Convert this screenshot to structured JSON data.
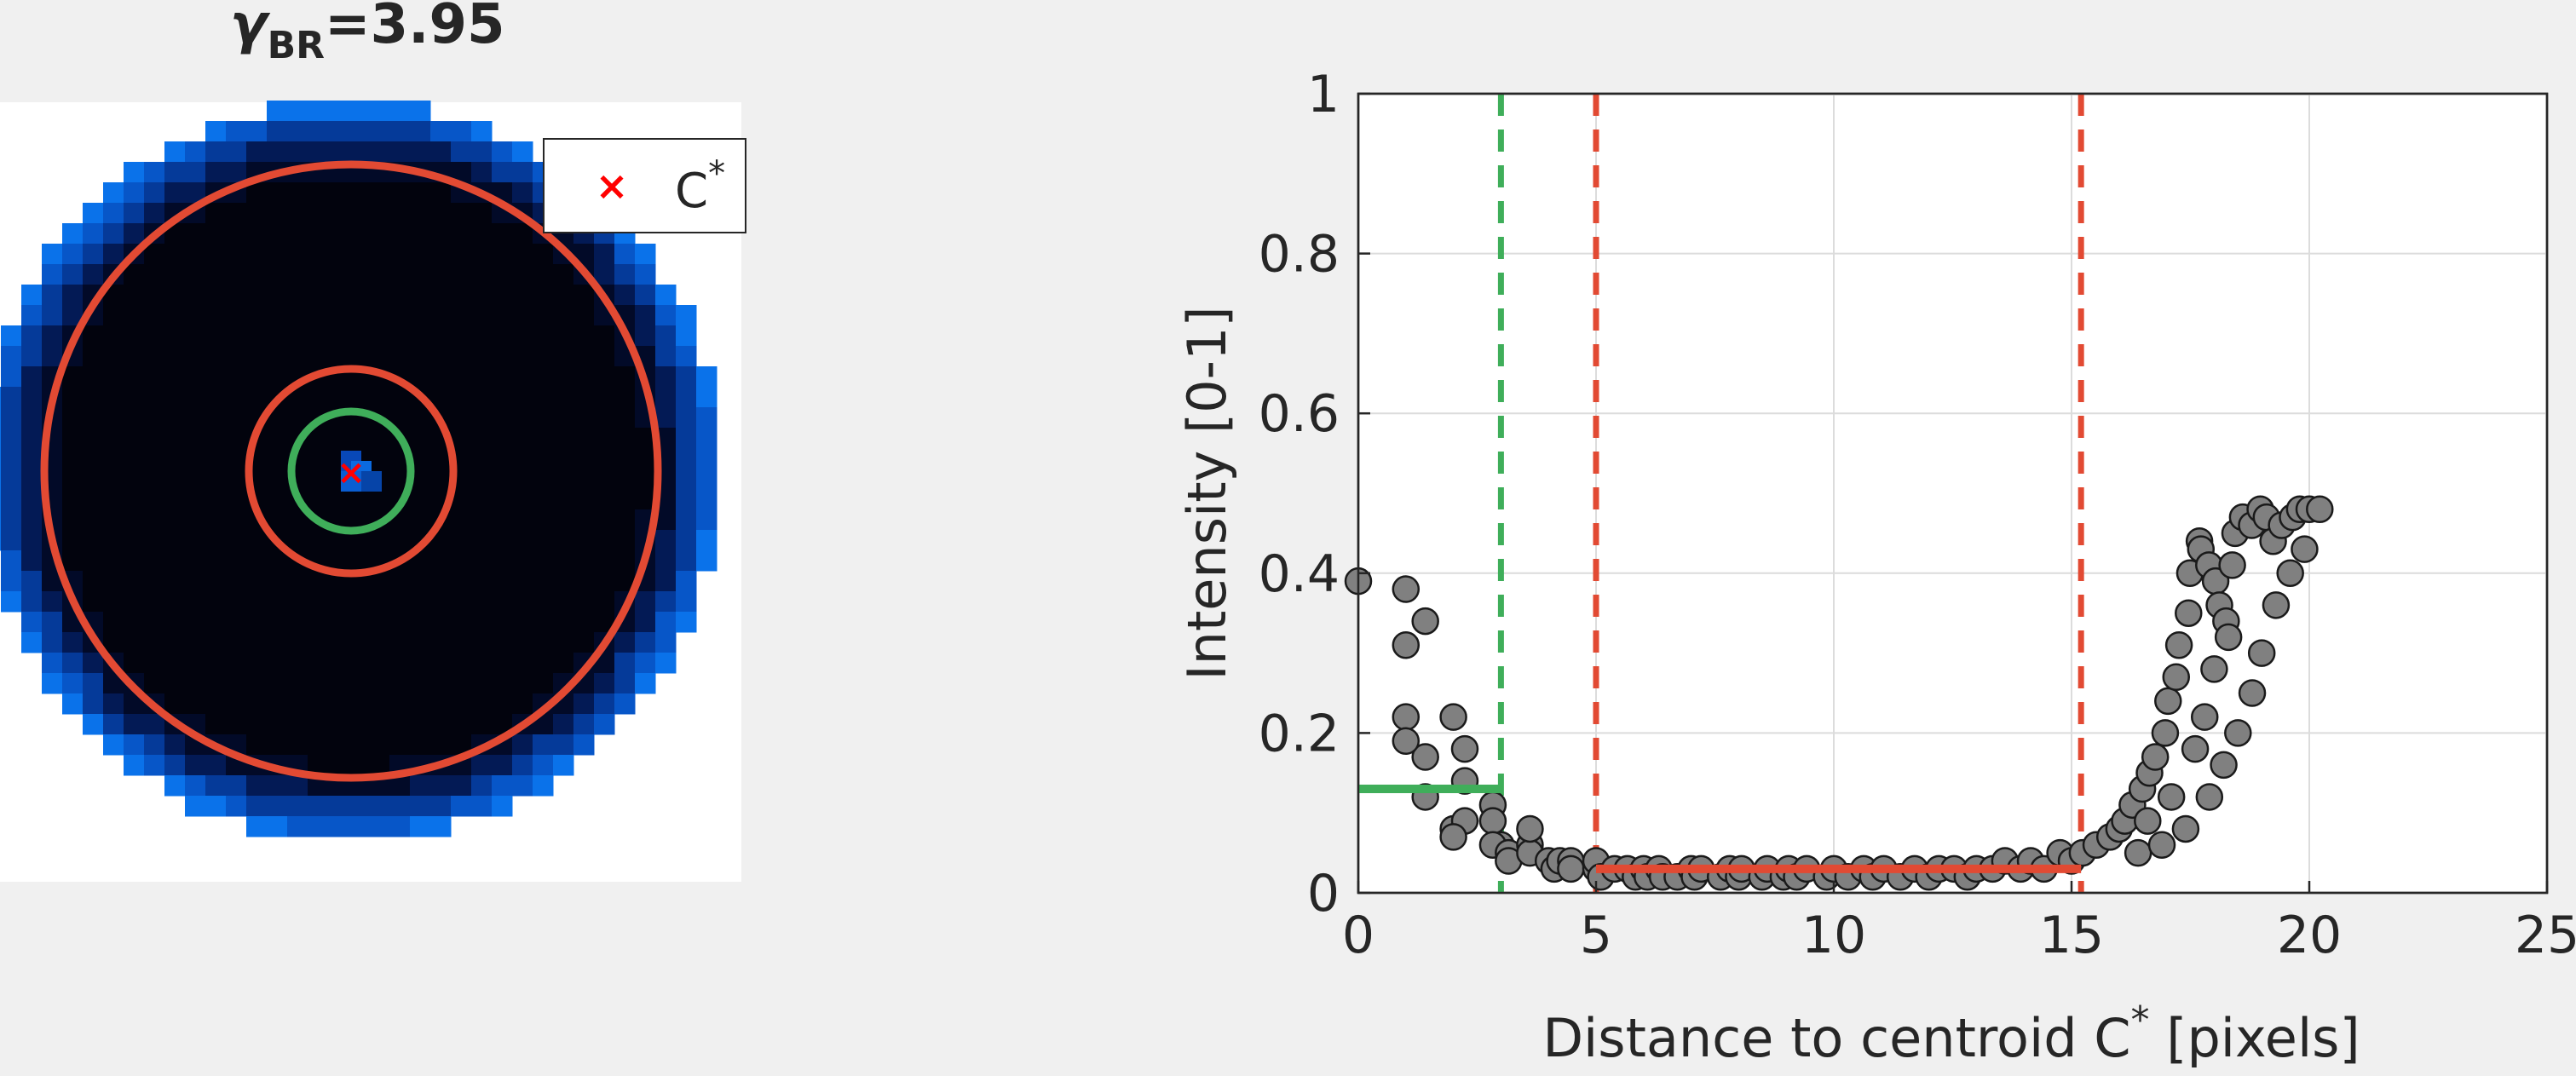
{
  "left_panel": {
    "title_symbol": "γ",
    "title_subscript": "BR",
    "title_value": "=3.95",
    "legend_marker": "×",
    "legend_label": "C",
    "legend_sup": "*",
    "colors": {
      "background_disk_dark": "#02030d",
      "edge_blue": "#0a6fe8",
      "circle_red": "#e24a33",
      "circle_green": "#3fae5a",
      "marker_red": "#ff0000"
    }
  },
  "chart_data": {
    "type": "scatter",
    "title": "",
    "xlabel": "Distance to centroid C",
    "xlabel_sup": "*",
    "xlabel_suffix": " [pixels]",
    "ylabel": "Intensity [0-1]",
    "xlim": [
      0,
      25
    ],
    "ylim": [
      0,
      1
    ],
    "xticks": [
      0,
      5,
      10,
      15,
      20,
      25
    ],
    "yticks": [
      0,
      0.2,
      0.4,
      0.6,
      0.8,
      1
    ],
    "ytick_labels": [
      "0",
      "0.2",
      "0.4",
      "0.6",
      "0.8",
      "1"
    ],
    "xtick_labels": [
      "0",
      "5",
      "10",
      "15",
      "20",
      "25"
    ],
    "grid": true,
    "marker_color": "#808080",
    "points": [
      [
        0,
        0.39
      ],
      [
        1,
        0.38
      ],
      [
        1,
        0.31
      ],
      [
        1.41,
        0.34
      ],
      [
        1,
        0.22
      ],
      [
        1.41,
        0.17
      ],
      [
        1,
        0.19
      ],
      [
        2,
        0.22
      ],
      [
        2,
        0.08
      ],
      [
        1.41,
        0.12
      ],
      [
        2.24,
        0.18
      ],
      [
        2.24,
        0.14
      ],
      [
        2.24,
        0.09
      ],
      [
        2,
        0.07
      ],
      [
        2.83,
        0.11
      ],
      [
        2.83,
        0.09
      ],
      [
        3,
        0.06
      ],
      [
        2.83,
        0.06
      ],
      [
        3.16,
        0.05
      ],
      [
        3.16,
        0.04
      ],
      [
        3.61,
        0.06
      ],
      [
        3.61,
        0.05
      ],
      [
        3.61,
        0.08
      ],
      [
        4,
        0.04
      ],
      [
        4.12,
        0.03
      ],
      [
        4.24,
        0.04
      ],
      [
        4.47,
        0.04
      ],
      [
        4.47,
        0.03
      ],
      [
        5,
        0.03
      ],
      [
        5,
        0.04
      ],
      [
        5.1,
        0.02
      ],
      [
        5.39,
        0.03
      ],
      [
        5.66,
        0.03
      ],
      [
        5.83,
        0.02
      ],
      [
        6,
        0.03
      ],
      [
        6.08,
        0.02
      ],
      [
        6.32,
        0.03
      ],
      [
        6.4,
        0.02
      ],
      [
        6.71,
        0.02
      ],
      [
        7,
        0.03
      ],
      [
        7.07,
        0.02
      ],
      [
        7.21,
        0.03
      ],
      [
        7.62,
        0.02
      ],
      [
        7.81,
        0.03
      ],
      [
        8,
        0.02
      ],
      [
        8.06,
        0.03
      ],
      [
        8.49,
        0.02
      ],
      [
        8.6,
        0.03
      ],
      [
        8.94,
        0.02
      ],
      [
        9.05,
        0.03
      ],
      [
        9.22,
        0.02
      ],
      [
        9.43,
        0.03
      ],
      [
        9.85,
        0.02
      ],
      [
        10,
        0.03
      ],
      [
        10.3,
        0.02
      ],
      [
        10.63,
        0.03
      ],
      [
        10.82,
        0.02
      ],
      [
        11.05,
        0.03
      ],
      [
        11.4,
        0.02
      ],
      [
        11.7,
        0.03
      ],
      [
        12,
        0.02
      ],
      [
        12.21,
        0.03
      ],
      [
        12.53,
        0.03
      ],
      [
        12.81,
        0.02
      ],
      [
        13,
        0.03
      ],
      [
        13.34,
        0.03
      ],
      [
        13.6,
        0.04
      ],
      [
        13.93,
        0.03
      ],
      [
        14.14,
        0.04
      ],
      [
        14.42,
        0.03
      ],
      [
        14.76,
        0.05
      ],
      [
        15,
        0.04
      ],
      [
        15.23,
        0.05
      ],
      [
        15.52,
        0.06
      ],
      [
        15.81,
        0.07
      ],
      [
        16,
        0.08
      ],
      [
        16.12,
        0.09
      ],
      [
        16.28,
        0.11
      ],
      [
        16.49,
        0.13
      ],
      [
        16.64,
        0.15
      ],
      [
        16.76,
        0.17
      ],
      [
        16.97,
        0.2
      ],
      [
        17.03,
        0.24
      ],
      [
        17.2,
        0.27
      ],
      [
        17.26,
        0.31
      ],
      [
        17.46,
        0.35
      ],
      [
        17.49,
        0.4
      ],
      [
        17.69,
        0.44
      ],
      [
        17.72,
        0.43
      ],
      [
        17.89,
        0.41
      ],
      [
        18.03,
        0.39
      ],
      [
        18.11,
        0.36
      ],
      [
        18.25,
        0.34
      ],
      [
        18.38,
        0.41
      ],
      [
        18.44,
        0.45
      ],
      [
        18.6,
        0.47
      ],
      [
        18.79,
        0.46
      ],
      [
        18.97,
        0.48
      ],
      [
        19.1,
        0.47
      ],
      [
        19.24,
        0.44
      ],
      [
        19.42,
        0.46
      ],
      [
        19.65,
        0.47
      ],
      [
        19.8,
        0.48
      ],
      [
        20,
        0.48
      ],
      [
        20.22,
        0.48
      ],
      [
        16.4,
        0.05
      ],
      [
        16.9,
        0.06
      ],
      [
        17.4,
        0.08
      ],
      [
        17.9,
        0.12
      ],
      [
        18.2,
        0.16
      ],
      [
        18.5,
        0.2
      ],
      [
        18.8,
        0.25
      ],
      [
        19.0,
        0.3
      ],
      [
        19.3,
        0.36
      ],
      [
        19.6,
        0.4
      ],
      [
        19.9,
        0.43
      ],
      [
        16.6,
        0.09
      ],
      [
        17.1,
        0.12
      ],
      [
        17.6,
        0.18
      ],
      [
        17.8,
        0.22
      ],
      [
        18.0,
        0.28
      ],
      [
        18.3,
        0.32
      ]
    ],
    "annotations": {
      "green_vline_x": 3,
      "red_vline_x1": 5,
      "red_vline_x2": 15.2,
      "green_hline": {
        "x0": 0,
        "x1": 3,
        "y": 0.13
      },
      "red_hline": {
        "x0": 5,
        "x1": 15.2,
        "y": 0.03
      },
      "green_color": "#3fae5a",
      "red_color": "#e24a33"
    }
  }
}
